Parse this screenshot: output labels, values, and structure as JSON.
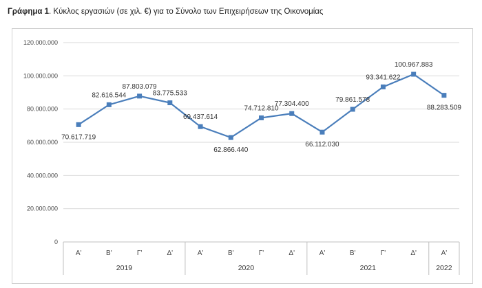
{
  "caption": {
    "prefix": "Γράφημα 1",
    "text": ". Κύκλος εργασιών (σε χιλ. €) για το Σύνολο των Επιχειρήσεων της Οικονομίας"
  },
  "chart_data": {
    "type": "line",
    "title": "Κύκλος εργασιών (σε χιλ. €) για το Σύνολο των Επιχειρήσεων της Οικονομίας",
    "categories": [
      "Α'",
      "Β'",
      "Γ'",
      "Δ'",
      "Α'",
      "Β'",
      "Γ'",
      "Δ'",
      "Α'",
      "Β'",
      "Γ'",
      "Δ'",
      "Α'"
    ],
    "groups": [
      {
        "label": "2019",
        "count": 4
      },
      {
        "label": "2020",
        "count": 4
      },
      {
        "label": "2021",
        "count": 4
      },
      {
        "label": "2022",
        "count": 1
      }
    ],
    "values": [
      70617719,
      82616544,
      87803079,
      83775533,
      69437614,
      62866440,
      74712810,
      77304400,
      66112030,
      79861578,
      93341622,
      100967883,
      88283509
    ],
    "value_labels": [
      "70.617.719",
      "82.616.544",
      "87.803.079",
      "83.775.533",
      "69.437.614",
      "62.866.440",
      "74.712.810",
      "77.304.400",
      "66.112.030",
      "79.861.578",
      "93.341.622",
      "100.967.883",
      "88.283.509"
    ],
    "ylim": [
      0,
      120000000
    ],
    "yticks": [
      0,
      20000000,
      40000000,
      60000000,
      80000000,
      100000000,
      120000000
    ],
    "ytick_labels": [
      "0",
      "20.000.000",
      "40.000.000",
      "60.000.000",
      "80.000.000",
      "100.000.000",
      "120.000.000"
    ],
    "grid": true,
    "legend": "none",
    "colors": {
      "line": "#4a7ebb",
      "marker": "#4a7ebb",
      "grid": "#d9d9d9"
    }
  }
}
